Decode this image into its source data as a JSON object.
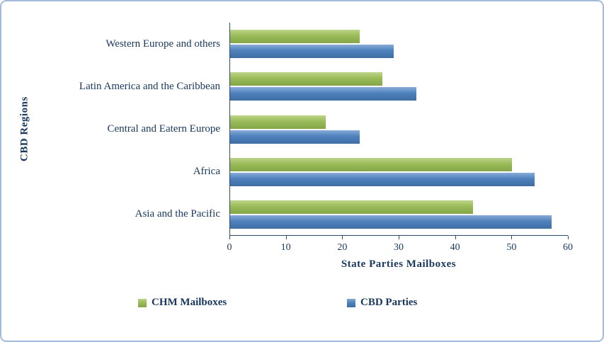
{
  "chart_data": {
    "type": "bar",
    "orientation": "horizontal",
    "categories": [
      "Western Europe and others",
      "Latin America and the Caribbean",
      "Central and Eatern Europe",
      "Africa",
      "Asia and the Pacific"
    ],
    "series": [
      {
        "name": "CHM Mailboxes",
        "color": "#9BBB59",
        "color_light": "#bdd489",
        "color_dark": "#84a647",
        "values": [
          23,
          27,
          17,
          50,
          43
        ]
      },
      {
        "name": "CBD Parties",
        "color": "#4F81BD",
        "color_light": "#87abd6",
        "color_dark": "#3f6da3",
        "values": [
          29,
          33,
          23,
          54,
          57
        ]
      }
    ],
    "xlabel": "State Parties Mailboxes",
    "ylabel": "CBD Regions",
    "xlim": [
      0,
      60
    ],
    "xticks": [
      0,
      10,
      20,
      30,
      40,
      50,
      60
    ],
    "legend_position": "bottom",
    "grid": false,
    "text_color": "#17375E",
    "border_color": "#a3bbda",
    "background_color": "#ffffff"
  }
}
